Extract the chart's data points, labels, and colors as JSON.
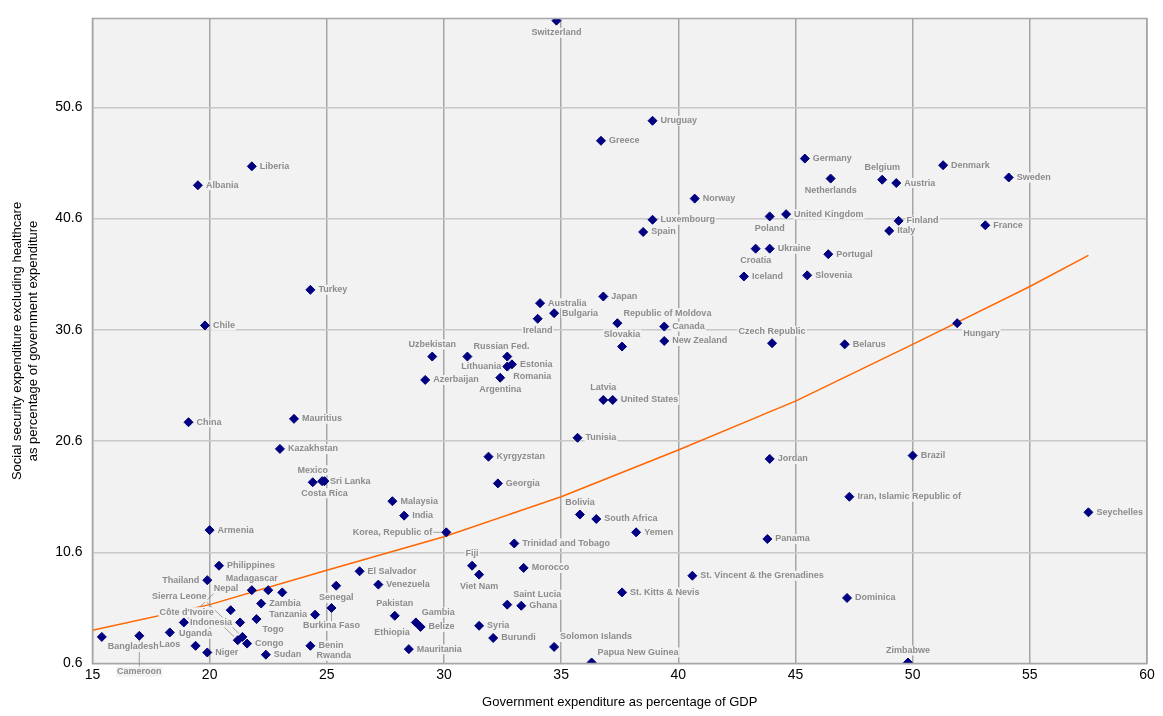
{
  "chart_data": {
    "type": "scatter",
    "xlabel": "Government expenditure as percentage of GDP",
    "ylabel": "Social security expenditure excluding healthcare as percentage of government expenditure",
    "xlim": [
      15,
      60
    ],
    "xticks": [
      15,
      20,
      25,
      30,
      35,
      40,
      45,
      50,
      55,
      60
    ],
    "ylim": [
      0.6,
      58.6
    ],
    "yticks": [
      0.6,
      10.6,
      20.6,
      30.6,
      40.6,
      50.6
    ],
    "grid": true,
    "marker": "diamond",
    "series": [
      {
        "type": "scatter",
        "color": "#000080",
        "x": [
          21.8,
          19.5,
          24.3,
          19.8,
          34.8,
          36.7,
          38.9,
          45.4,
          46.5,
          40.7,
          44.6,
          43.9,
          38.9,
          38.5,
          43.3,
          43.9,
          46.4,
          42.8,
          45.5,
          36.8,
          34.1,
          34.7,
          34.0,
          37.4,
          39.4,
          37.6,
          39.4,
          44.0,
          47.1,
          48.7,
          49.3,
          51.3,
          54.1,
          49.4,
          49.0,
          53.1,
          51.9,
          29.5,
          31.0,
          32.7,
          32.7,
          32.9,
          32.4,
          29.2,
          36.8,
          37.2,
          35.7,
          19.1,
          23.6,
          23.0,
          31.9,
          32.3,
          24.4,
          24.8,
          24.9,
          27.8,
          28.3,
          30.1,
          20.0,
          20.4,
          19.9,
          26.4,
          25.4,
          27.2,
          21.8,
          22.2,
          22.0,
          21.3,
          21.4,
          21.2,
          21.6,
          22.4,
          15.4,
          17.0,
          18.3,
          18.9,
          19.4,
          19.9,
          25.2,
          24.5,
          27.9,
          28.8,
          29.0,
          28.5,
          24.3,
          35.8,
          36.5,
          38.2,
          33.0,
          43.9,
          43.8,
          31.2,
          31.5,
          33.4,
          40.6,
          37.6,
          32.7,
          33.3,
          31.5,
          32.1,
          34.7,
          36.3,
          47.2,
          47.3,
          50.0,
          57.5,
          49.8,
          22.5,
          23.1,
          20.9
        ],
        "values": [
          45.3,
          43.6,
          34.2,
          31.0,
          58.4,
          47.6,
          49.4,
          46.0,
          44.2,
          42.4,
          41.0,
          40.8,
          40.5,
          39.4,
          37.9,
          37.9,
          37.4,
          35.4,
          35.5,
          33.6,
          33.0,
          32.1,
          31.6,
          31.2,
          30.9,
          29.1,
          29.6,
          29.4,
          29.3,
          44.1,
          43.8,
          45.4,
          44.3,
          40.4,
          39.5,
          40.0,
          31.2,
          28.2,
          28.2,
          28.2,
          27.3,
          27.5,
          26.3,
          26.1,
          24.3,
          24.3,
          20.9,
          22.3,
          22.6,
          19.9,
          19.2,
          16.8,
          16.9,
          17.0,
          17.0,
          15.2,
          13.9,
          12.4,
          12.6,
          9.4,
          8.1,
          8.9,
          7.6,
          7.7,
          7.2,
          6.0,
          4.6,
          4.3,
          3.0,
          2.7,
          2.4,
          1.4,
          3.0,
          3.1,
          3.4,
          4.3,
          2.2,
          1.6,
          5.6,
          5.0,
          4.9,
          4.3,
          3.9,
          1.9,
          2.2,
          14.0,
          13.6,
          12.4,
          11.4,
          19.0,
          11.8,
          9.4,
          8.6,
          9.2,
          8.5,
          7.0,
          5.9,
          5.8,
          4.0,
          2.9,
          2.1,
          0.7,
          6.5,
          15.6,
          19.3,
          14.2,
          0.7,
          7.2,
          7.0,
          5.4
        ]
      },
      {
        "type": "line",
        "color": "#ff6600",
        "marker": "none",
        "x": [
          15,
          20,
          25,
          30,
          35,
          40,
          45,
          50,
          55,
          57.5
        ],
        "values": [
          3.6,
          5.9,
          9.0,
          12.0,
          15.6,
          19.8,
          24.2,
          29.3,
          34.5,
          37.3
        ]
      }
    ],
    "annotations": [
      {
        "text": "Liberia",
        "x": 21.8,
        "y": 45.3
      },
      {
        "text": "Albania",
        "x": 19.5,
        "y": 43.6
      },
      {
        "text": "Turkey",
        "x": 24.3,
        "y": 34.2
      },
      {
        "text": "Chile",
        "x": 19.8,
        "y": 31.0
      },
      {
        "text": "Switzerland",
        "x": 34.8,
        "y": 58.4
      },
      {
        "text": "Greece",
        "x": 36.7,
        "y": 47.6
      },
      {
        "text": "Uruguay",
        "x": 38.9,
        "y": 49.4
      },
      {
        "text": "Germany",
        "x": 45.4,
        "y": 46.0
      },
      {
        "text": "Netherlands",
        "x": 46.5,
        "y": 44.2
      },
      {
        "text": "Norway",
        "x": 40.7,
        "y": 42.4
      },
      {
        "text": "United Kingdom",
        "x": 44.6,
        "y": 41.0
      },
      {
        "text": "Poland",
        "x": 43.9,
        "y": 40.8
      },
      {
        "text": "Luxembourg",
        "x": 38.9,
        "y": 40.5
      },
      {
        "text": "Spain",
        "x": 38.5,
        "y": 39.4
      },
      {
        "text": "Croatia",
        "x": 43.3,
        "y": 37.9
      },
      {
        "text": "Ukraine",
        "x": 43.9,
        "y": 37.9
      },
      {
        "text": "Portugal",
        "x": 46.4,
        "y": 37.4
      },
      {
        "text": "Iceland",
        "x": 42.8,
        "y": 35.4
      },
      {
        "text": "Slovenia",
        "x": 45.5,
        "y": 35.5
      },
      {
        "text": "Japan",
        "x": 36.8,
        "y": 33.6
      },
      {
        "text": "Australia",
        "x": 34.1,
        "y": 33.0
      },
      {
        "text": "Bulgaria",
        "x": 34.7,
        "y": 32.1
      },
      {
        "text": "Ireland",
        "x": 34.0,
        "y": 31.6
      },
      {
        "text": "Republic of Moldova",
        "x": 37.4,
        "y": 31.2
      },
      {
        "text": "Canada",
        "x": 39.4,
        "y": 30.9
      },
      {
        "text": "Slovakia",
        "x": 37.6,
        "y": 29.1
      },
      {
        "text": "New Zealand",
        "x": 39.4,
        "y": 29.6
      },
      {
        "text": "Czech Republic",
        "x": 44.0,
        "y": 29.4
      },
      {
        "text": "Belarus",
        "x": 47.1,
        "y": 29.3
      },
      {
        "text": "Belgium",
        "x": 48.7,
        "y": 44.1
      },
      {
        "text": "Austria",
        "x": 49.3,
        "y": 43.8
      },
      {
        "text": "Denmark",
        "x": 51.3,
        "y": 45.4
      },
      {
        "text": "Sweden",
        "x": 54.1,
        "y": 44.3
      },
      {
        "text": "Finland",
        "x": 49.4,
        "y": 40.4
      },
      {
        "text": "Italy",
        "x": 49.0,
        "y": 39.5
      },
      {
        "text": "France",
        "x": 53.1,
        "y": 40.0
      },
      {
        "text": "Hungary",
        "x": 51.9,
        "y": 31.2
      },
      {
        "text": "Uzbekistan",
        "x": 29.5,
        "y": 28.2
      },
      {
        "text": "Russian Fed.",
        "x": 31.0,
        "y": 28.2
      },
      {
        "text": "Lithuania",
        "x": 32.7,
        "y": 28.2
      },
      {
        "text": "Romania",
        "x": 32.7,
        "y": 27.3
      },
      {
        "text": "Estonia",
        "x": 32.9,
        "y": 27.5
      },
      {
        "text": "Argentina",
        "x": 32.4,
        "y": 26.3
      },
      {
        "text": "Azerbaijan",
        "x": 29.2,
        "y": 26.1
      },
      {
        "text": "Latvia",
        "x": 36.8,
        "y": 24.3
      },
      {
        "text": "United States",
        "x": 37.2,
        "y": 24.3
      },
      {
        "text": "Tunisia",
        "x": 35.7,
        "y": 20.9
      },
      {
        "text": "China",
        "x": 19.1,
        "y": 22.3
      },
      {
        "text": "Mauritius",
        "x": 23.6,
        "y": 22.6
      },
      {
        "text": "Kazakhstan",
        "x": 23.0,
        "y": 19.9
      },
      {
        "text": "Kyrgyzstan",
        "x": 31.9,
        "y": 19.2
      },
      {
        "text": "Georgia",
        "x": 32.3,
        "y": 16.8
      },
      {
        "text": "Mexico",
        "x": 24.4,
        "y": 16.9
      },
      {
        "text": "Sri Lanka",
        "x": 24.8,
        "y": 17.0
      },
      {
        "text": "Costa Rica",
        "x": 24.9,
        "y": 17.0
      },
      {
        "text": "Malaysia",
        "x": 27.8,
        "y": 15.2
      },
      {
        "text": "India",
        "x": 28.3,
        "y": 13.9
      },
      {
        "text": "Korea, Republic of",
        "x": 30.1,
        "y": 12.4
      },
      {
        "text": "Armenia",
        "x": 20.0,
        "y": 12.6
      },
      {
        "text": "Philippines",
        "x": 20.4,
        "y": 9.4
      },
      {
        "text": "Thailand",
        "x": 19.9,
        "y": 8.1
      },
      {
        "text": "El Salvador",
        "x": 26.4,
        "y": 8.9
      },
      {
        "text": "Senegal",
        "x": 25.4,
        "y": 7.6
      },
      {
        "text": "Venezuela",
        "x": 27.2,
        "y": 7.7
      },
      {
        "text": "Madagascar",
        "x": 21.8,
        "y": 7.2
      },
      {
        "text": "Zambia",
        "x": 22.2,
        "y": 6.0
      },
      {
        "text": "Togo",
        "x": 22.0,
        "y": 4.6
      },
      {
        "text": "Indonesia",
        "x": 21.3,
        "y": 4.3
      },
      {
        "text": "Sierra Leone",
        "x": 21.4,
        "y": 3.0
      },
      {
        "text": "Côte d'Ivoire",
        "x": 21.2,
        "y": 2.7
      },
      {
        "text": "Congo",
        "x": 21.6,
        "y": 2.4
      },
      {
        "text": "Sudan",
        "x": 22.4,
        "y": 1.4
      },
      {
        "text": "Bangladesh",
        "x": 15.4,
        "y": 3.0
      },
      {
        "text": "Cameroon",
        "x": 17.0,
        "y": 3.1
      },
      {
        "text": "Laos",
        "x": 18.3,
        "y": 3.4
      },
      {
        "text": "Nepal",
        "x": 18.9,
        "y": 4.3
      },
      {
        "text": "Uganda",
        "x": 19.4,
        "y": 2.2
      },
      {
        "text": "Niger",
        "x": 19.9,
        "y": 1.6
      },
      {
        "text": "Burkina Faso",
        "x": 25.2,
        "y": 5.6
      },
      {
        "text": "Tanzania",
        "x": 24.5,
        "y": 5.0
      },
      {
        "text": "Pakistan",
        "x": 27.9,
        "y": 4.9
      },
      {
        "text": "Gambia",
        "x": 28.8,
        "y": 4.3
      },
      {
        "text": "Ethiopia",
        "x": 28.8,
        "y": 4.3
      },
      {
        "text": "Belize",
        "x": 29.0,
        "y": 3.9
      },
      {
        "text": "Mauritania",
        "x": 28.5,
        "y": 1.9
      },
      {
        "text": "Benin",
        "x": 24.3,
        "y": 2.2
      },
      {
        "text": "Rwanda",
        "x": 24.3,
        "y": 2.2
      },
      {
        "text": "Bolivia",
        "x": 35.8,
        "y": 14.0
      },
      {
        "text": "South Africa",
        "x": 36.5,
        "y": 13.6
      },
      {
        "text": "Yemen",
        "x": 38.2,
        "y": 12.4
      },
      {
        "text": "Trinidad and Tobago",
        "x": 33.0,
        "y": 11.4
      },
      {
        "text": "Jordan",
        "x": 43.9,
        "y": 19.0
      },
      {
        "text": "Panama",
        "x": 43.8,
        "y": 11.8
      },
      {
        "text": "Fiji",
        "x": 31.2,
        "y": 9.4
      },
      {
        "text": "Viet Nam",
        "x": 31.5,
        "y": 8.6
      },
      {
        "text": "Morocco",
        "x": 33.4,
        "y": 9.2
      },
      {
        "text": "St. Vincent & the Grenadines",
        "x": 40.6,
        "y": 8.5
      },
      {
        "text": "St. Kitts & Nevis",
        "x": 37.6,
        "y": 7.0
      },
      {
        "text": "Saint Lucia",
        "x": 32.7,
        "y": 5.9
      },
      {
        "text": "Ghana",
        "x": 33.3,
        "y": 5.8
      },
      {
        "text": "Syria",
        "x": 31.5,
        "y": 4.0
      },
      {
        "text": "Burundi",
        "x": 32.1,
        "y": 2.9
      },
      {
        "text": "Solomon Islands",
        "x": 34.7,
        "y": 2.1
      },
      {
        "text": "Papua New Guinea",
        "x": 36.3,
        "y": 0.7
      },
      {
        "text": "Dominica",
        "x": 47.2,
        "y": 6.5
      },
      {
        "text": "Iran, Islamic Republic of",
        "x": 47.3,
        "y": 15.6
      },
      {
        "text": "Brazil",
        "x": 50.0,
        "y": 19.3
      },
      {
        "text": "Seychelles",
        "x": 57.5,
        "y": 14.2
      },
      {
        "text": "Zimbabwe",
        "x": 49.8,
        "y": 0.7
      }
    ]
  }
}
